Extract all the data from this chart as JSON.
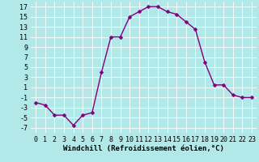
{
  "x": [
    0,
    1,
    2,
    3,
    4,
    5,
    6,
    7,
    8,
    9,
    10,
    11,
    12,
    13,
    14,
    15,
    16,
    17,
    18,
    19,
    20,
    21,
    22,
    23
  ],
  "y": [
    -2,
    -2.5,
    -4.5,
    -4.5,
    -6.5,
    -4.5,
    -4,
    4,
    11,
    11,
    15,
    16,
    17,
    17,
    16,
    15.5,
    14,
    12.5,
    6,
    1.5,
    1.5,
    -0.5,
    -1,
    -1
  ],
  "line_color": "#800080",
  "marker_color": "#800080",
  "bg_color": "#b2e8e8",
  "grid_color": "#c8e8e8",
  "xlabel": "Windchill (Refroidissement éolien,°C)",
  "xlim": [
    -0.5,
    23.5
  ],
  "ylim": [
    -8,
    18
  ],
  "yticks": [
    -7,
    -5,
    -3,
    -1,
    1,
    3,
    5,
    7,
    9,
    11,
    13,
    15,
    17
  ],
  "xticks": [
    0,
    1,
    2,
    3,
    4,
    5,
    6,
    7,
    8,
    9,
    10,
    11,
    12,
    13,
    14,
    15,
    16,
    17,
    18,
    19,
    20,
    21,
    22,
    23
  ],
  "xlabel_fontsize": 6.5,
  "tick_fontsize": 6.0,
  "marker_size": 2.5,
  "line_width": 1.0
}
